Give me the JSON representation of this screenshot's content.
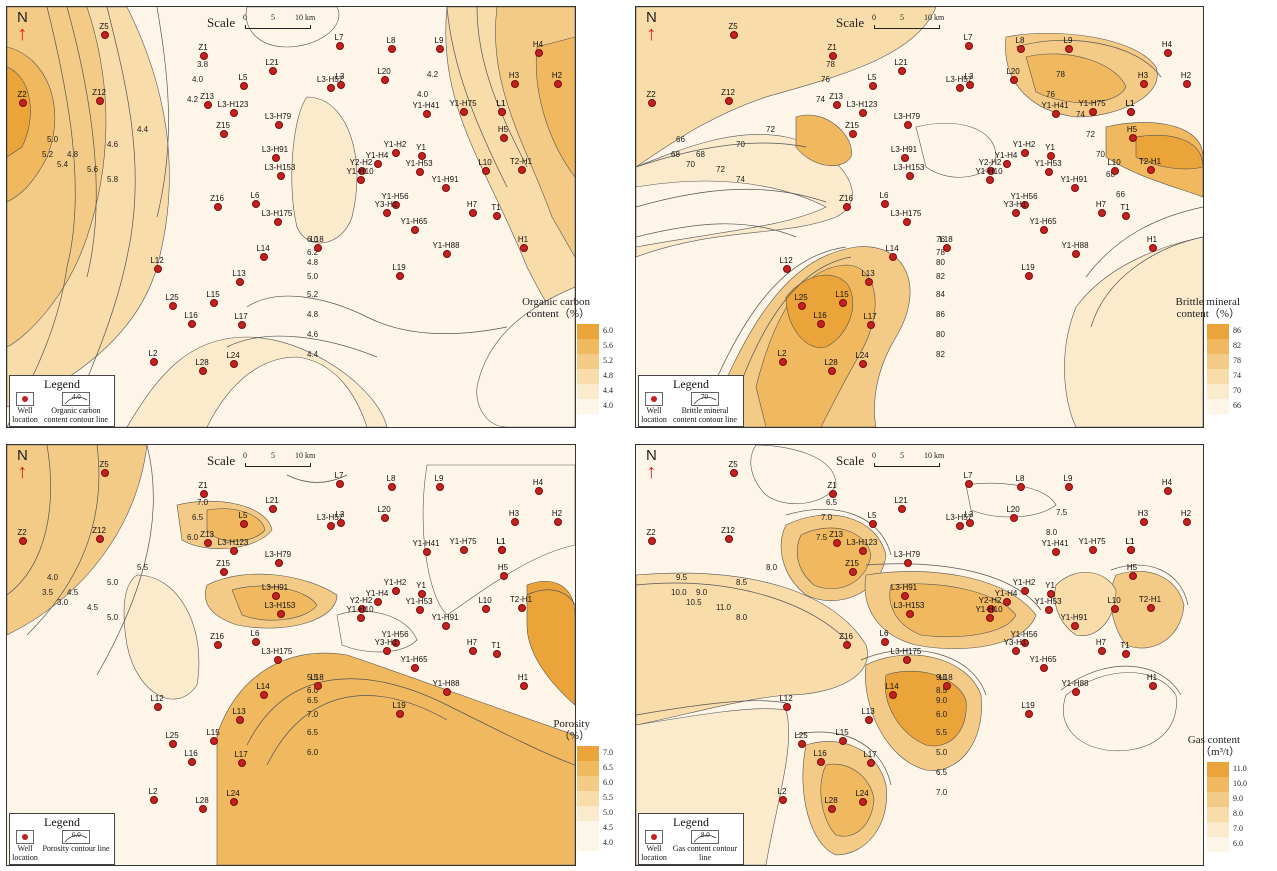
{
  "north_label": "N",
  "scale": {
    "label": "Scale",
    "t0": "0",
    "t1": "5",
    "t2": "10 km"
  },
  "colors": {
    "bands": [
      "#fdf6e8",
      "#fbeacc",
      "#f8dcaa",
      "#f4cb86",
      "#f0b85f",
      "#eba43a"
    ],
    "well": "#c42020",
    "contour": "#555555"
  },
  "panels": [
    {
      "id": "organic",
      "legend": {
        "title": "Legend",
        "well_label": "Well location",
        "line_label": "Organic carbon content contour line",
        "line_sample": "4.0"
      },
      "colorbar": {
        "title": [
          "Organic carbon",
          "content（%）"
        ],
        "ticks": [
          "6.0",
          "5.6",
          "5.2",
          "4.8",
          "4.4",
          "4.0"
        ]
      },
      "contour_labels": [
        "3.8",
        "4.0",
        "4.2",
        "4.4",
        "4.6",
        "4.8",
        "5.0",
        "5.2",
        "5.4",
        "5.6",
        "5.8",
        "6.0",
        "6.2",
        "4.8",
        "5.0",
        "5.2",
        "4.8",
        "4.6",
        "4.4",
        "4.2",
        "4.0"
      ]
    },
    {
      "id": "brittle",
      "legend": {
        "title": "Legend",
        "well_label": "Well location",
        "line_label": "Brittle mineral content contour line",
        "line_sample": "70"
      },
      "colorbar": {
        "title": [
          "Brittle mineral",
          "content（%）"
        ],
        "ticks": [
          "86",
          "82",
          "78",
          "74",
          "70",
          "66"
        ]
      },
      "contour_labels": [
        "78",
        "76",
        "74",
        "72",
        "70",
        "68",
        "66",
        "68",
        "70",
        "72",
        "74",
        "76",
        "78",
        "80",
        "82",
        "84",
        "86",
        "80",
        "82",
        "78",
        "76",
        "74",
        "72",
        "70",
        "68",
        "66"
      ]
    },
    {
      "id": "porosity",
      "legend": {
        "title": "Legend",
        "well_label": "Well location",
        "line_label": "Porosity contour line",
        "line_sample": "6.0"
      },
      "colorbar": {
        "title": [
          "Porosity",
          "（%）"
        ],
        "ticks": [
          "7.0",
          "6.5",
          "6.0",
          "5.5",
          "5.0",
          "4.5",
          "4.0"
        ]
      },
      "contour_labels": [
        "7.0",
        "6.5",
        "6.0",
        "5.5",
        "5.0",
        "4.5",
        "4.0",
        "3.5",
        "3.0",
        "4.5",
        "5.0",
        "5.5",
        "6.0",
        "6.5",
        "7.0",
        "6.5",
        "6.0"
      ]
    },
    {
      "id": "gas",
      "legend": {
        "title": "Legend",
        "well_label": "Well location",
        "line_label": "Gas content contour line",
        "line_sample": "8.0"
      },
      "colorbar": {
        "title": [
          "Gas content",
          "（m³/t）"
        ],
        "ticks": [
          "11.0",
          "10.0",
          "9.0",
          "8.0",
          "7.0",
          "6.0"
        ]
      },
      "contour_labels": [
        "6.5",
        "7.0",
        "7.5",
        "8.0",
        "8.5",
        "9.0",
        "9.5",
        "10.0",
        "10.5",
        "11.0",
        "8.0",
        "9.5",
        "8.5",
        "9.0",
        "6.0",
        "5.5",
        "5.0",
        "6.5",
        "7.0",
        "7.5",
        "8.0"
      ]
    }
  ],
  "wells": [
    {
      "name": "Z5"
    },
    {
      "name": "Z1"
    },
    {
      "name": "Z2"
    },
    {
      "name": "Z12"
    },
    {
      "name": "Z13"
    },
    {
      "name": "Z15"
    },
    {
      "name": "Z16"
    },
    {
      "name": "L21"
    },
    {
      "name": "L5"
    },
    {
      "name": "L3-H57"
    },
    {
      "name": "L3"
    },
    {
      "name": "L3-H123"
    },
    {
      "name": "L3-H79"
    },
    {
      "name": "L3-H91"
    },
    {
      "name": "L3-H153"
    },
    {
      "name": "L3-H175"
    },
    {
      "name": "L6"
    },
    {
      "name": "L14"
    },
    {
      "name": "L18"
    },
    {
      "name": "L7"
    },
    {
      "name": "L8"
    },
    {
      "name": "L9"
    },
    {
      "name": "L20"
    },
    {
      "name": "H4"
    },
    {
      "name": "H3"
    },
    {
      "name": "H2"
    },
    {
      "name": "Y1-H41"
    },
    {
      "name": "Y1-H75"
    },
    {
      "name": "L1"
    },
    {
      "name": "H5"
    },
    {
      "name": "Y1-H2"
    },
    {
      "name": "Y1"
    },
    {
      "name": "Y2-H2"
    },
    {
      "name": "Y1-H4"
    },
    {
      "name": "Y1-H53"
    },
    {
      "name": "Y1-H10"
    },
    {
      "name": "L10"
    },
    {
      "name": "T2-H1"
    },
    {
      "name": "Y1-H91"
    },
    {
      "name": "Y1-H56"
    },
    {
      "name": "H7"
    },
    {
      "name": "Y3-H1"
    },
    {
      "name": "T1"
    },
    {
      "name": "Y1-H65"
    },
    {
      "name": "H1"
    },
    {
      "name": "Y1-H88"
    },
    {
      "name": "L12"
    },
    {
      "name": "L13"
    },
    {
      "name": "L19"
    },
    {
      "name": "L25"
    },
    {
      "name": "L15"
    },
    {
      "name": "L16"
    },
    {
      "name": "L17"
    },
    {
      "name": "L1"
    },
    {
      "name": "L2"
    },
    {
      "name": "L28"
    },
    {
      "name": "L24"
    }
  ]
}
